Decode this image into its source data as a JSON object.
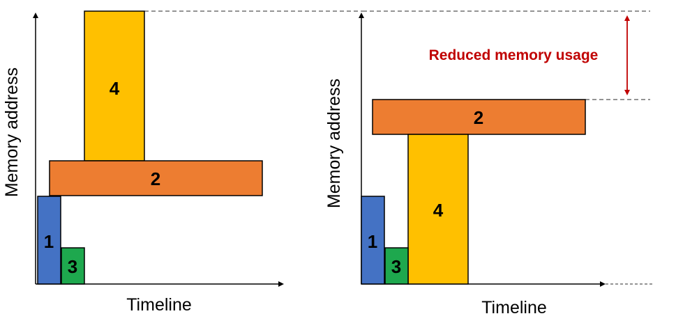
{
  "colors": {
    "block_1": "#4472C4",
    "block_2": "#ED7D31",
    "block_3": "#1EA84E",
    "block_4": "#FFC000",
    "annotation": "#C00000",
    "axis": "#000000",
    "dashed": "#555555"
  },
  "left_panel": {
    "y_axis_label": "Memory address",
    "x_axis_label": "Timeline",
    "blocks": [
      {
        "id": "1",
        "label": "1"
      },
      {
        "id": "3",
        "label": "3"
      },
      {
        "id": "2",
        "label": "2"
      },
      {
        "id": "4",
        "label": "4"
      }
    ]
  },
  "right_panel": {
    "y_axis_label": "Memory address",
    "x_axis_label": "Timeline",
    "blocks": [
      {
        "id": "1",
        "label": "1"
      },
      {
        "id": "3",
        "label": "3"
      },
      {
        "id": "4",
        "label": "4"
      },
      {
        "id": "2",
        "label": "2"
      }
    ],
    "annotation": "Reduced memory usage"
  }
}
